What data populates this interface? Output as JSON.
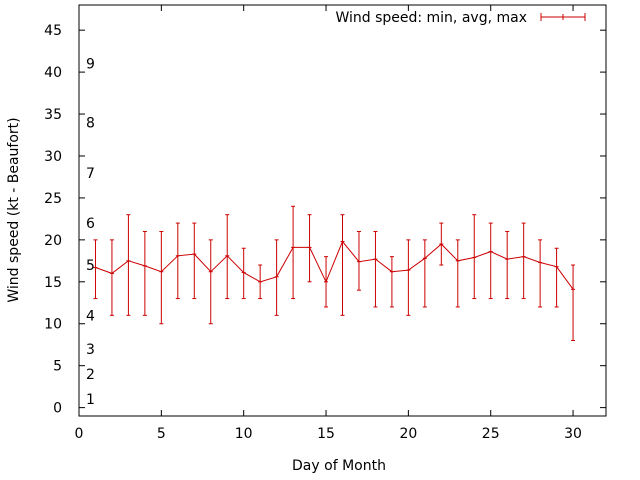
{
  "chart_data": {
    "type": "line",
    "title": "",
    "xlabel": "Day of Month",
    "ylabel": "Wind speed (kt - Beaufort)",
    "xlim": [
      0,
      32
    ],
    "ylim": [
      -1,
      48
    ],
    "x_ticks": [
      0,
      5,
      10,
      15,
      20,
      25,
      30
    ],
    "y_ticks": [
      0,
      5,
      10,
      15,
      20,
      25,
      30,
      35,
      40,
      45
    ],
    "beaufort_labels": [
      {
        "value": 1,
        "label": "1"
      },
      {
        "value": 4,
        "label": "2"
      },
      {
        "value": 7,
        "label": "3"
      },
      {
        "value": 11,
        "label": "4"
      },
      {
        "value": 17,
        "label": "5"
      },
      {
        "value": 22,
        "label": "6"
      },
      {
        "value": 28,
        "label": "7"
      },
      {
        "value": 34,
        "label": "8"
      },
      {
        "value": 41,
        "label": "9"
      }
    ],
    "legend": {
      "label": "Wind speed: min, avg, max",
      "position": "top-right"
    },
    "series": [
      {
        "name": "Wind speed: min, avg, max",
        "color": "#cc0000",
        "points": [
          {
            "x": 1,
            "min": 13,
            "avg": 16.7,
            "max": 20
          },
          {
            "x": 2,
            "min": 11,
            "avg": 16.0,
            "max": 20
          },
          {
            "x": 3,
            "min": 11,
            "avg": 17.5,
            "max": 23
          },
          {
            "x": 4,
            "min": 11,
            "avg": 16.9,
            "max": 21
          },
          {
            "x": 5,
            "min": 10,
            "avg": 16.2,
            "max": 21
          },
          {
            "x": 6,
            "min": 13,
            "avg": 18.1,
            "max": 22
          },
          {
            "x": 7,
            "min": 13,
            "avg": 18.3,
            "max": 22
          },
          {
            "x": 8,
            "min": 10,
            "avg": 16.2,
            "max": 20
          },
          {
            "x": 9,
            "min": 13,
            "avg": 18.1,
            "max": 23
          },
          {
            "x": 10,
            "min": 13,
            "avg": 16.1,
            "max": 19
          },
          {
            "x": 11,
            "min": 13,
            "avg": 15.0,
            "max": 17
          },
          {
            "x": 12,
            "min": 11,
            "avg": 15.6,
            "max": 20
          },
          {
            "x": 13,
            "min": 13,
            "avg": 19.1,
            "max": 24
          },
          {
            "x": 14,
            "min": 15,
            "avg": 19.1,
            "max": 23
          },
          {
            "x": 15,
            "min": 12,
            "avg": 15.0,
            "max": 18
          },
          {
            "x": 16,
            "min": 11,
            "avg": 19.8,
            "max": 23
          },
          {
            "x": 17,
            "min": 14,
            "avg": 17.4,
            "max": 21
          },
          {
            "x": 18,
            "min": 12,
            "avg": 17.7,
            "max": 21
          },
          {
            "x": 19,
            "min": 12,
            "avg": 16.2,
            "max": 18
          },
          {
            "x": 20,
            "min": 11,
            "avg": 16.4,
            "max": 20
          },
          {
            "x": 21,
            "min": 12,
            "avg": 17.8,
            "max": 20
          },
          {
            "x": 22,
            "min": 17,
            "avg": 19.5,
            "max": 22
          },
          {
            "x": 23,
            "min": 12,
            "avg": 17.5,
            "max": 20
          },
          {
            "x": 24,
            "min": 13,
            "avg": 17.9,
            "max": 23
          },
          {
            "x": 25,
            "min": 13,
            "avg": 18.6,
            "max": 22
          },
          {
            "x": 26,
            "min": 13,
            "avg": 17.7,
            "max": 21
          },
          {
            "x": 27,
            "min": 13,
            "avg": 18.0,
            "max": 22
          },
          {
            "x": 28,
            "min": 12,
            "avg": 17.3,
            "max": 20
          },
          {
            "x": 29,
            "min": 12,
            "avg": 16.8,
            "max": 19
          },
          {
            "x": 30,
            "min": 8,
            "avg": 14.1,
            "max": 17
          }
        ]
      }
    ]
  }
}
